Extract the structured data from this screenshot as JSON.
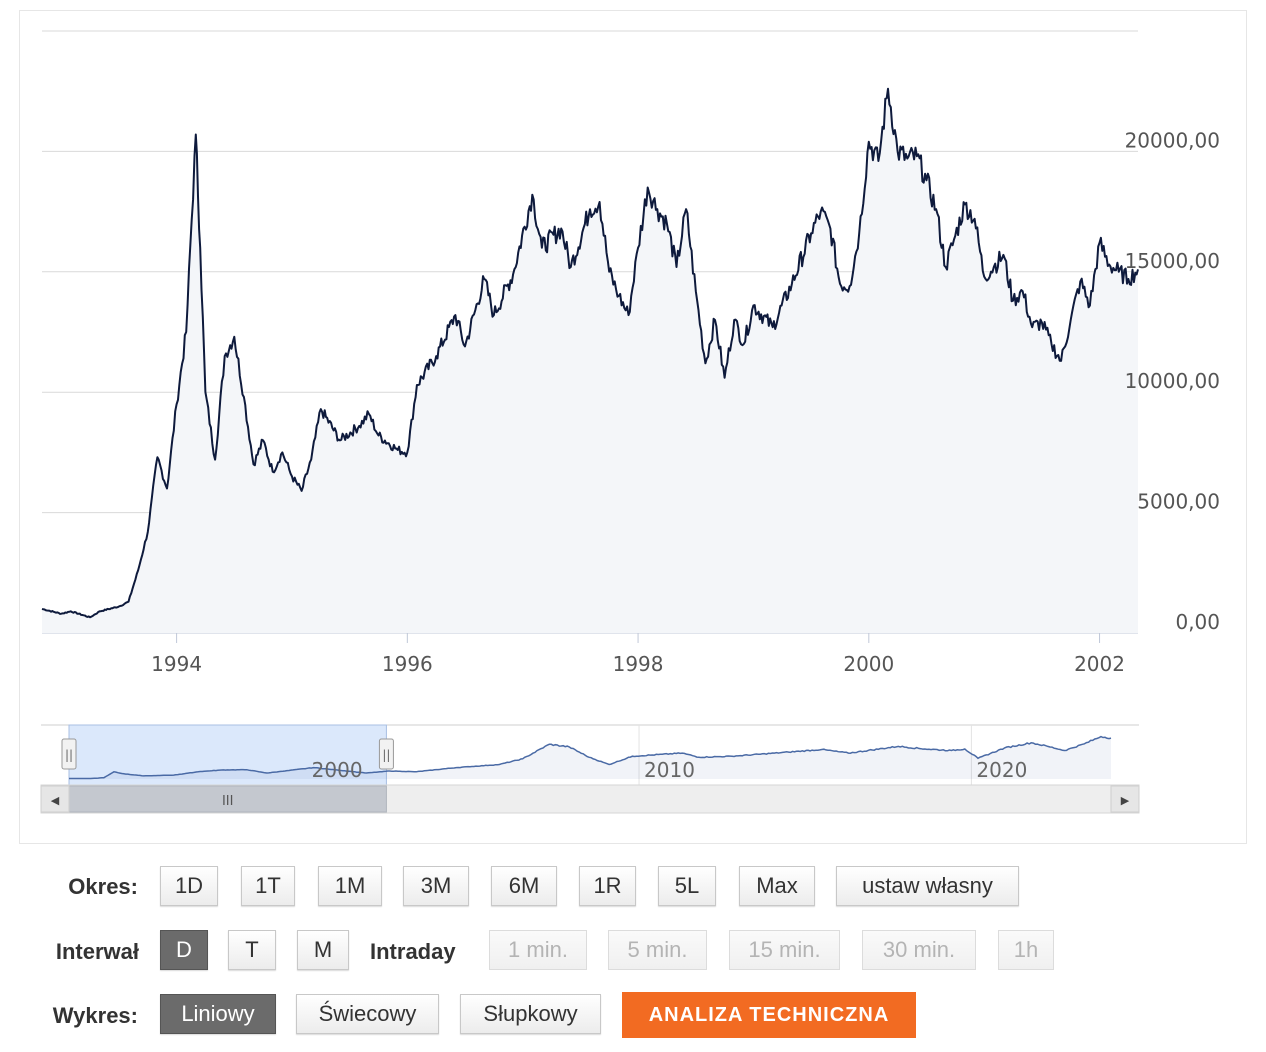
{
  "chart_data": {
    "type": "area",
    "title": "",
    "x_axis": {
      "ticks": [
        "1994",
        "1996",
        "1998",
        "2000",
        "2002"
      ],
      "range": [
        "1992-11",
        "2002-05"
      ]
    },
    "y_axis": {
      "ticks": [
        "0,00",
        "5000,00",
        "10000,00",
        "15000,00",
        "20000,00"
      ],
      "ylim": [
        0,
        25000
      ],
      "position": "right"
    },
    "grid": true,
    "series": [
      {
        "values": [
          [
            "1992-11",
            1000
          ],
          [
            "1993-01",
            800
          ],
          [
            "1993-02",
            900
          ],
          [
            "1993-04",
            650
          ],
          [
            "1993-05",
            900
          ],
          [
            "1993-07",
            1100
          ],
          [
            "1993-08",
            1300
          ],
          [
            "1993-09",
            2600
          ],
          [
            "1993-10",
            4200
          ],
          [
            "1993-11",
            7300
          ],
          [
            "1993-12",
            6000
          ],
          [
            "1994-01",
            9500
          ],
          [
            "1994-02",
            12500
          ],
          [
            "1994-03",
            20700
          ],
          [
            "1994-03-15",
            16000
          ],
          [
            "1994-04",
            10000
          ],
          [
            "1994-05",
            7200
          ],
          [
            "1994-06",
            11500
          ],
          [
            "1994-07",
            12300
          ],
          [
            "1994-08",
            9800
          ],
          [
            "1994-09",
            7000
          ],
          [
            "1994-10",
            8000
          ],
          [
            "1994-11",
            6700
          ],
          [
            "1994-12",
            7500
          ],
          [
            "1995-01",
            6500
          ],
          [
            "1995-02",
            5900
          ],
          [
            "1995-03",
            7200
          ],
          [
            "1995-04",
            9300
          ],
          [
            "1995-06",
            8000
          ],
          [
            "1995-08",
            8600
          ],
          [
            "1995-09",
            9100
          ],
          [
            "1995-10",
            8200
          ],
          [
            "1995-12",
            7600
          ],
          [
            "1996-01",
            7500
          ],
          [
            "1996-02",
            10300
          ],
          [
            "1996-04",
            11500
          ],
          [
            "1996-06",
            13200
          ],
          [
            "1996-07",
            11900
          ],
          [
            "1996-09",
            14700
          ],
          [
            "1996-10",
            13200
          ],
          [
            "1996-12",
            14900
          ],
          [
            "1997-02",
            18200
          ],
          [
            "1997-03",
            16000
          ],
          [
            "1997-05",
            16800
          ],
          [
            "1997-06",
            15200
          ],
          [
            "1997-08",
            17600
          ],
          [
            "1997-09",
            17900
          ],
          [
            "1997-10",
            15000
          ],
          [
            "1997-11",
            14000
          ],
          [
            "1997-12",
            13200
          ],
          [
            "1998-01",
            16000
          ],
          [
            "1998-02",
            18500
          ],
          [
            "1998-03",
            17600
          ],
          [
            "1998-04",
            17000
          ],
          [
            "1998-05",
            15200
          ],
          [
            "1998-06",
            17600
          ],
          [
            "1998-07",
            14200
          ],
          [
            "1998-08",
            11200
          ],
          [
            "1998-09",
            13000
          ],
          [
            "1998-10",
            10600
          ],
          [
            "1998-11",
            13000
          ],
          [
            "1998-12",
            12000
          ],
          [
            "1999-01",
            13600
          ],
          [
            "1999-03",
            12700
          ],
          [
            "1999-05",
            14500
          ],
          [
            "1999-07",
            16600
          ],
          [
            "1999-08",
            17500
          ],
          [
            "1999-09",
            16800
          ],
          [
            "1999-10",
            14500
          ],
          [
            "1999-11",
            14400
          ],
          [
            "1999-12",
            16600
          ],
          [
            "2000-01",
            20400
          ],
          [
            "2000-02",
            19600
          ],
          [
            "2000-03",
            22600
          ],
          [
            "2000-04",
            20000
          ],
          [
            "2000-05",
            19700
          ],
          [
            "2000-06",
            19800
          ],
          [
            "2000-07",
            18800
          ],
          [
            "2000-08",
            17600
          ],
          [
            "2000-09",
            15200
          ],
          [
            "2000-10",
            16500
          ],
          [
            "2000-11",
            17800
          ],
          [
            "2000-12",
            17200
          ],
          [
            "2001-01",
            14800
          ],
          [
            "2001-02",
            15200
          ],
          [
            "2001-03",
            15700
          ],
          [
            "2001-04",
            13800
          ],
          [
            "2001-05",
            14200
          ],
          [
            "2001-06",
            12700
          ],
          [
            "2001-07",
            12900
          ],
          [
            "2001-08",
            12000
          ],
          [
            "2001-09",
            11300
          ],
          [
            "2001-10",
            13000
          ],
          [
            "2001-11",
            14600
          ],
          [
            "2001-12",
            13600
          ],
          [
            "2002-01",
            16200
          ],
          [
            "2002-02",
            15300
          ],
          [
            "2002-03",
            15000
          ],
          [
            "2002-04",
            14700
          ],
          [
            "2002-05",
            15100
          ]
        ]
      }
    ]
  },
  "navigator": {
    "ticks": [
      "2000",
      "2010",
      "2020"
    ],
    "range": [
      1992.85,
      2024.2
    ],
    "selection": [
      1992.85,
      2002.4
    ],
    "handle_glyph": "||",
    "scroll_thumb_glyph": "III",
    "scroll_left_arrow": "◀",
    "scroll_right_arrow": "▶",
    "overview_values": [
      [
        1992.85,
        1000
      ],
      [
        1993.5,
        900
      ],
      [
        1993.9,
        2500
      ],
      [
        1994.2,
        14000
      ],
      [
        1994.5,
        10000
      ],
      [
        1995.1,
        6000
      ],
      [
        1996.0,
        7500
      ],
      [
        1996.8,
        14500
      ],
      [
        1997.5,
        17500
      ],
      [
        1998.2,
        18000
      ],
      [
        1998.8,
        11500
      ],
      [
        2000.2,
        22000
      ],
      [
        2001.8,
        11500
      ],
      [
        2002.5,
        15500
      ],
      [
        2003.3,
        14000
      ],
      [
        2004.5,
        22000
      ],
      [
        2005.8,
        28000
      ],
      [
        2006.5,
        39000
      ],
      [
        2007.3,
        67000
      ],
      [
        2007.9,
        62000
      ],
      [
        2008.5,
        42000
      ],
      [
        2009.1,
        28000
      ],
      [
        2009.8,
        44000
      ],
      [
        2011.3,
        50000
      ],
      [
        2011.8,
        42000
      ],
      [
        2012.8,
        44000
      ],
      [
        2014.5,
        52000
      ],
      [
        2015.5,
        57000
      ],
      [
        2016.3,
        50000
      ],
      [
        2017.8,
        63000
      ],
      [
        2018.6,
        58000
      ],
      [
        2019.4,
        55000
      ],
      [
        2019.8,
        58000
      ],
      [
        2020.2,
        40000
      ],
      [
        2021.0,
        60000
      ],
      [
        2021.8,
        70000
      ],
      [
        2022.3,
        63000
      ],
      [
        2022.8,
        55000
      ],
      [
        2023.4,
        68000
      ],
      [
        2023.9,
        82000
      ],
      [
        2024.2,
        79000
      ]
    ],
    "overview_ylim": [
      0,
      85000
    ]
  },
  "controls": {
    "okres": {
      "label": "Okres:",
      "buttons": [
        "1D",
        "1T",
        "1M",
        "3M",
        "6M",
        "1R",
        "5L",
        "Max",
        "ustaw własny"
      ]
    },
    "interwal": {
      "label": "Interwał",
      "buttons": [
        "D",
        "T",
        "M"
      ],
      "active": "D",
      "intraday_label": "Intraday",
      "intraday_buttons": [
        "1 min.",
        "5 min.",
        "15 min.",
        "30 min.",
        "1h"
      ]
    },
    "wykres": {
      "label": "Wykres:",
      "buttons": [
        "Liniowy",
        "Świecowy",
        "Słupkowy"
      ],
      "active": "Liniowy",
      "analysis_button": "ANALIZA TECHNICZNA"
    }
  },
  "colors": {
    "line": "#0e1a3c",
    "area_fill": "#f4f6f9",
    "grid": "#d9d9d9",
    "navigator_selection": "#dbe8fb",
    "navigator_line": "#4a6aa5",
    "active_button": "#6b6b6b",
    "analysis_button": "#f26b22"
  }
}
